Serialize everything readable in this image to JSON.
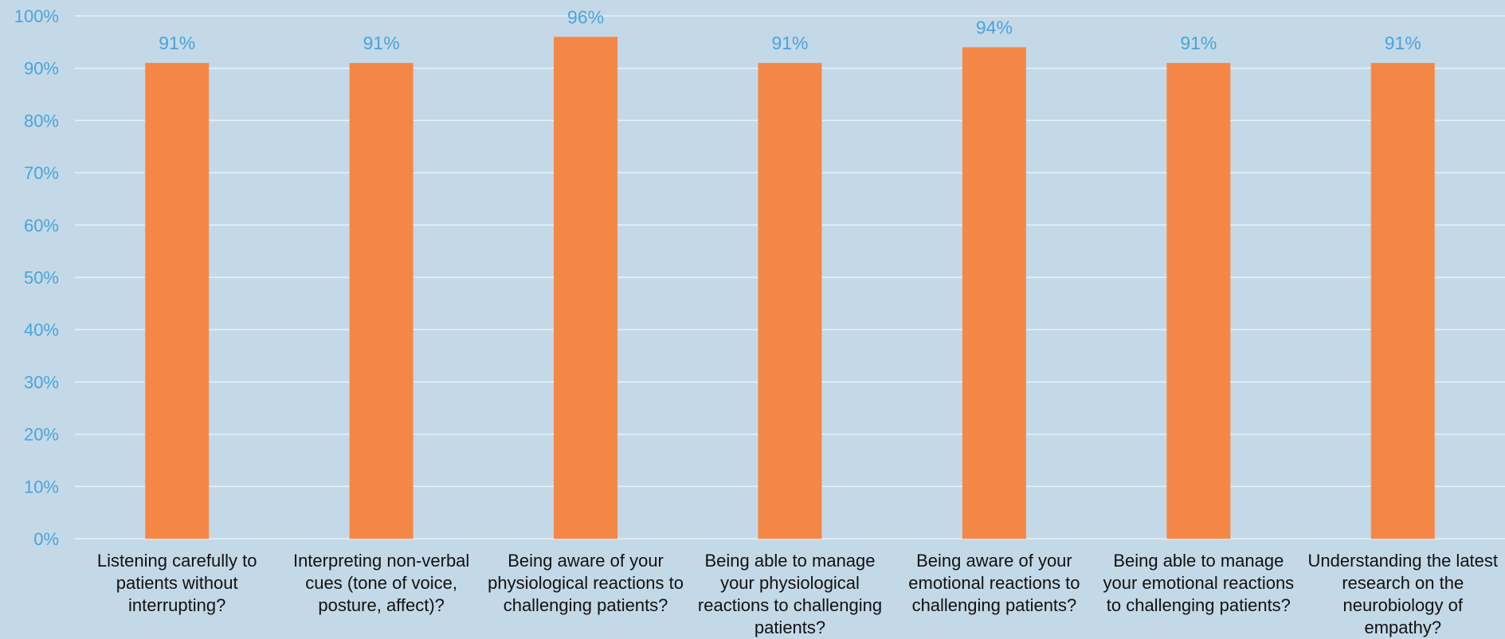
{
  "chart_data": {
    "type": "bar",
    "categories": [
      "Listening carefully to patients without interrupting?",
      "Interpreting non-verbal cues (tone of voice, posture, affect)?",
      "Being aware of your physiological reactions to challenging patients?",
      "Being able to manage your physiological reactions to challenging patients?",
      "Being aware of your emotional reactions to challenging patients?",
      "Being able to manage your emotional reactions to challenging patients?",
      "Understanding the latest research on the neurobiology of empathy?"
    ],
    "values": [
      91,
      91,
      96,
      91,
      94,
      91,
      91
    ],
    "data_labels": [
      "91%",
      "91%",
      "96%",
      "91%",
      "94%",
      "91%",
      "91%"
    ],
    "title": "",
    "xlabel": "",
    "ylabel": "",
    "ylim": [
      0,
      100
    ],
    "yticks": [
      0,
      10,
      20,
      30,
      40,
      50,
      60,
      70,
      80,
      90,
      100
    ],
    "ytick_labels": [
      "0%",
      "10%",
      "20%",
      "30%",
      "40%",
      "50%",
      "60%",
      "70%",
      "80%",
      "90%",
      "100%"
    ],
    "grid": true,
    "legend": "none",
    "colors": {
      "background": "#c4d9e7",
      "bar": "#f58746",
      "gridline": "#e8f1f7",
      "axis_tick_text": "#4aa3db",
      "data_label_text": "#4aa3db",
      "category_text": "#111111"
    }
  }
}
